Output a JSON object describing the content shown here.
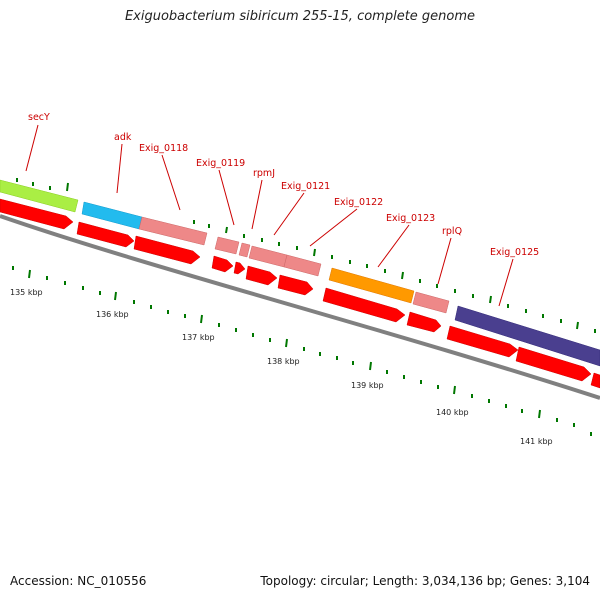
{
  "header": {
    "title": "Exiguobacterium sibiricum 255-15, complete genome"
  },
  "footer": {
    "accession": "Accession: NC_010556",
    "topology": "Topology: circular; Length: 3,034,136 bp; Genes: 3,104"
  },
  "colors": {
    "backbone": "#808080",
    "cds": "#ff0000",
    "secY": "#aaee44",
    "adk": "#22bbee",
    "ribosomal": "#ee8888",
    "exig_0123": "#ff9900",
    "exig_0125": "#4a3f8f",
    "tick": "#007700",
    "label": "#cc0000"
  },
  "gene_labels": [
    "secY",
    "adk",
    "Exig_0118",
    "Exig_0119",
    "rpmJ",
    "Exig_0121",
    "Exig_0122",
    "Exig_0123",
    "rplQ",
    "Exig_0125"
  ],
  "scale_labels": [
    "135 kbp",
    "136 kbp",
    "137 kbp",
    "138 kbp",
    "139 kbp",
    "140 kbp",
    "141 kbp"
  ]
}
